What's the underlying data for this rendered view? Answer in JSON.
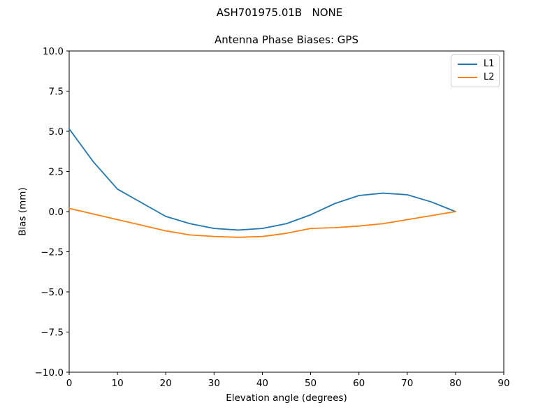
{
  "figure": {
    "suptitle": "ASH701975.01B   NONE",
    "background_color": "#ffffff"
  },
  "chart_data": {
    "type": "line",
    "title": "Antenna Phase Biases: GPS",
    "xlabel": "Elevation angle (degrees)",
    "ylabel": "Bias (mm)",
    "xlim": [
      0,
      90
    ],
    "ylim": [
      -10,
      10
    ],
    "x_ticks": [
      0,
      10,
      20,
      30,
      40,
      50,
      60,
      70,
      80,
      90
    ],
    "y_ticks": [
      10.0,
      7.5,
      5.0,
      2.5,
      0.0,
      -2.5,
      -5.0,
      -7.5,
      -10.0
    ],
    "grid": false,
    "legend_position": "upper right",
    "axis_color": "#000000",
    "x": [
      0,
      5,
      10,
      15,
      20,
      25,
      30,
      35,
      40,
      45,
      50,
      55,
      60,
      65,
      70,
      75,
      80
    ],
    "series": [
      {
        "name": "L1",
        "color": "#1f77b4",
        "values": [
          5.15,
          3.1,
          1.4,
          0.55,
          -0.3,
          -0.75,
          -1.05,
          -1.15,
          -1.05,
          -0.75,
          -0.2,
          0.5,
          1.0,
          1.15,
          1.05,
          0.6,
          0.0
        ]
      },
      {
        "name": "L2",
        "color": "#ff7f0e",
        "values": [
          0.2,
          -0.15,
          -0.5,
          -0.85,
          -1.2,
          -1.45,
          -1.55,
          -1.6,
          -1.55,
          -1.35,
          -1.05,
          -1.0,
          -0.9,
          -0.75,
          -0.5,
          -0.25,
          0.0
        ]
      }
    ]
  }
}
